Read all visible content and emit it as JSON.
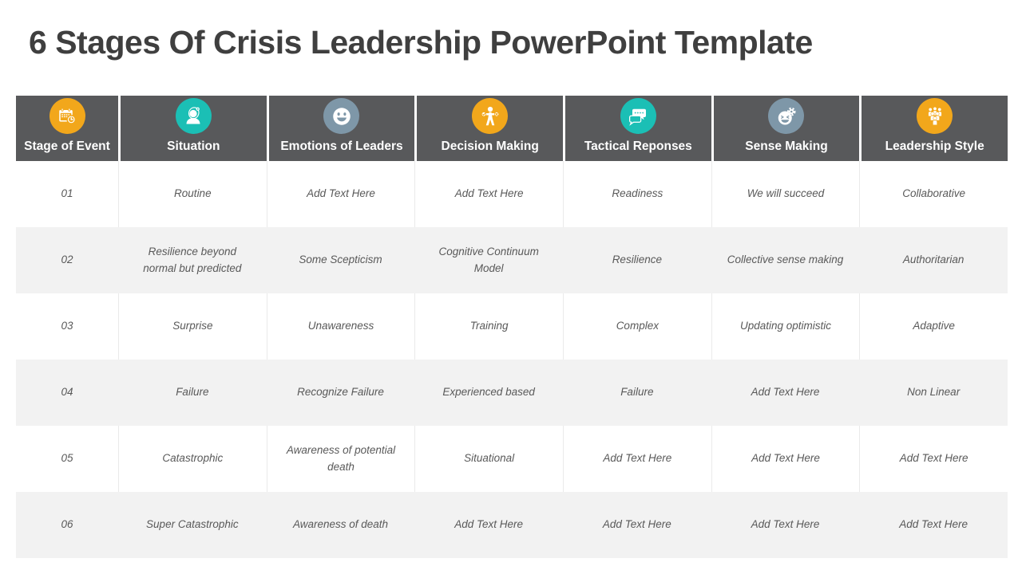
{
  "page": {
    "title": "6 Stages Of Crisis Leadership PowerPoint Template"
  },
  "colors": {
    "orange": "#F2A71B",
    "teal": "#1BBFB5",
    "blue_gray": "#7E97A8",
    "header_bg": "#58595B",
    "row_alt_bg": "#F2F2F2",
    "cell_text": "#595959",
    "title_text": "#3F3F3F"
  },
  "table": {
    "columns": [
      {
        "label": "Stage of Event",
        "icon": "calendar-clock-icon",
        "icon_color": "#F2A71B"
      },
      {
        "label": "Situation",
        "icon": "person-stethoscope-icon",
        "icon_color": "#1BBFB5"
      },
      {
        "label": "Emotions of Leaders",
        "icon": "smiley-face-icon",
        "icon_color": "#7E97A8"
      },
      {
        "label": "Decision Making",
        "icon": "decision-person-icon",
        "icon_color": "#F2A71B"
      },
      {
        "label": "Tactical Reponses",
        "icon": "chat-bubbles-icon",
        "icon_color": "#1BBFB5"
      },
      {
        "label": "Sense Making",
        "icon": "laughing-gear-icon",
        "icon_color": "#7E97A8"
      },
      {
        "label": "Leadership Style",
        "icon": "people-group-icon",
        "icon_color": "#F2A71B"
      }
    ],
    "rows": [
      [
        "01",
        "Routine",
        "Add Text Here",
        "Add Text Here",
        "Readiness",
        "We will succeed",
        "Collaborative"
      ],
      [
        "02",
        "Resilience beyond normal but predicted",
        "Some Scepticism",
        "Cognitive Continuum Model",
        "Resilience",
        "Collective sense making",
        "Authoritarian"
      ],
      [
        "03",
        "Surprise",
        "Unawareness",
        "Training",
        "Complex",
        "Updating optimistic",
        "Adaptive"
      ],
      [
        "04",
        "Failure",
        "Recognize Failure",
        "Experienced based",
        "Failure",
        "Add Text Here",
        "Non Linear"
      ],
      [
        "05",
        "Catastrophic",
        "Awareness of potential death",
        "Situational",
        "Add Text Here",
        "Add Text Here",
        "Add Text Here"
      ],
      [
        "06",
        "Super Catastrophic",
        "Awareness of death",
        "Add Text Here",
        "Add Text Here",
        "Add Text Here",
        "Add Text Here"
      ]
    ]
  }
}
